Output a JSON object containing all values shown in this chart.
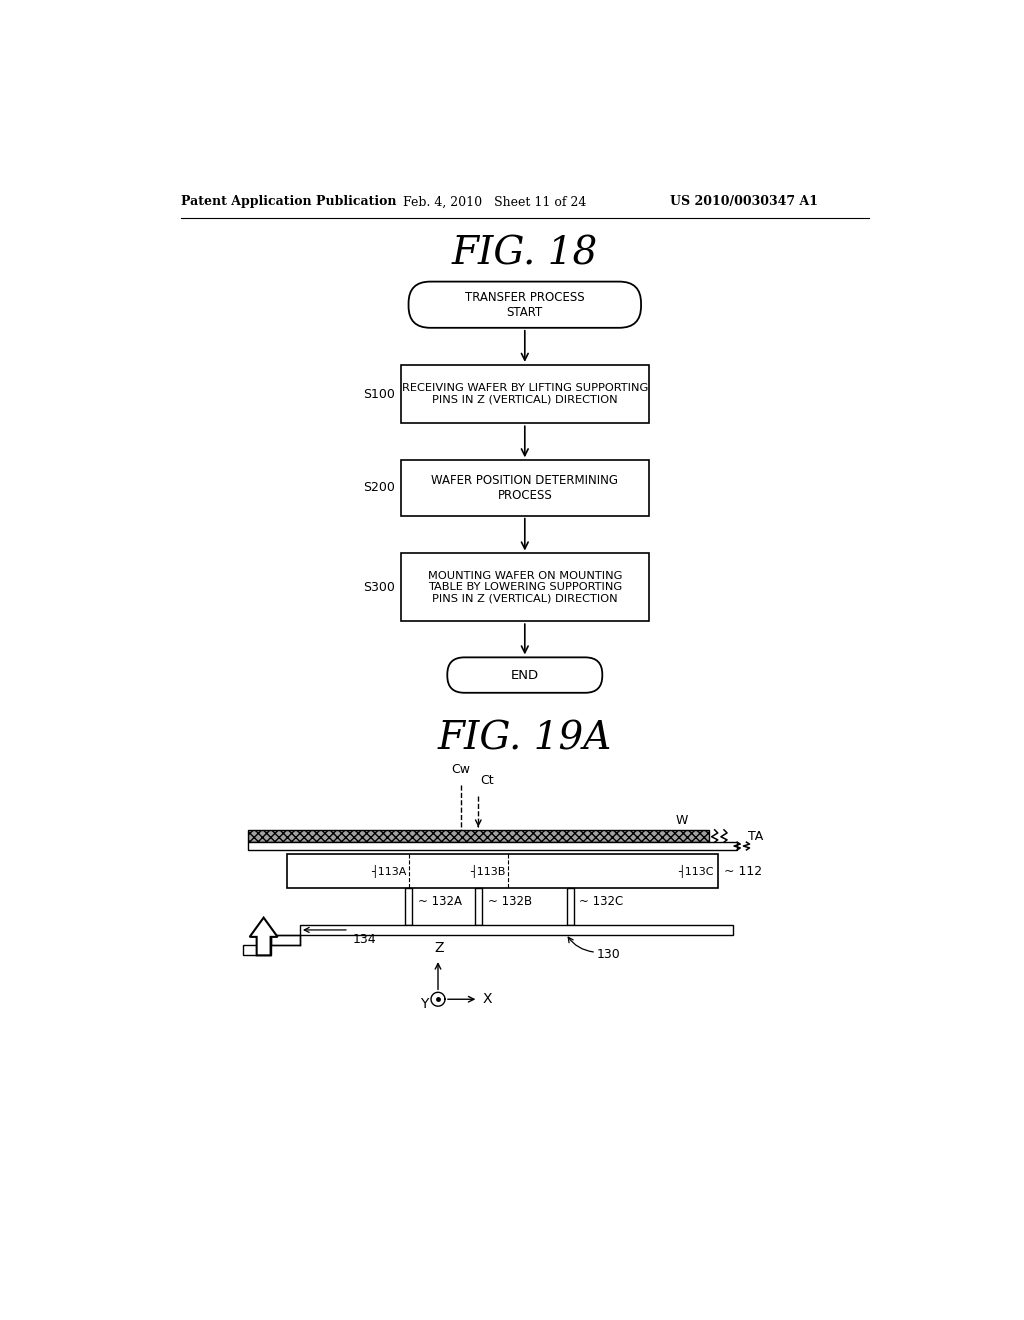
{
  "bg_color": "#ffffff",
  "header_left": "Patent Application Publication",
  "header_mid": "Feb. 4, 2010   Sheet 11 of 24",
  "header_right": "US 2010/0030347 A1",
  "fig18_title": "FIG. 18",
  "fig19a_title": "FIG. 19A",
  "flowchart": {
    "start_text": "TRANSFER PROCESS\nSTART",
    "s100_label": "S100",
    "s100_text": "RECEIVING WAFER BY LIFTING SUPPORTING\nPINS IN Z (VERTICAL) DIRECTION",
    "s200_label": "S200",
    "s200_text": "WAFER POSITION DETERMINING\nPROCESS",
    "s300_label": "S300",
    "s300_text": "MOUNTING WAFER ON MOUNTING\nTABLE BY LOWERING SUPPORTING\nPINS IN Z (VERTICAL) DIRECTION",
    "end_text": "END"
  }
}
